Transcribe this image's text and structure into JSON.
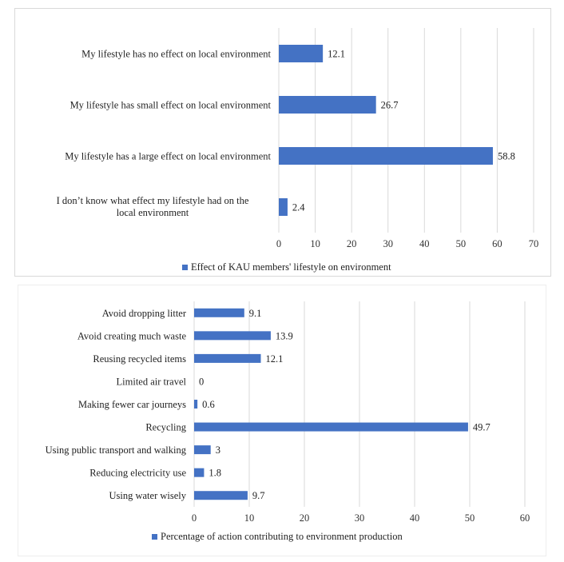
{
  "colors": {
    "bar": "#4472c4",
    "grid": "#d9d9d9",
    "text": "#222222"
  },
  "chart_data": [
    {
      "type": "bar",
      "orientation": "horizontal",
      "categories": [
        "My lifestyle has no effect on local environment",
        "My lifestyle has small effect on local environment",
        "My lifestyle has a large effect on local environment",
        "I don’t know what effect my lifestyle had on the local environment"
      ],
      "series": [
        {
          "name": "Effect of KAU members' lifestyle on environment",
          "values": [
            12.1,
            26.7,
            58.8,
            2.4
          ]
        }
      ],
      "xlim": [
        0,
        70
      ],
      "xticks": [
        0,
        10,
        20,
        30,
        40,
        50,
        60,
        70
      ],
      "grid": true,
      "legend": "bottom"
    },
    {
      "type": "bar",
      "orientation": "horizontal",
      "categories": [
        "Avoid dropping litter",
        "Avoid creating much waste",
        "Reusing recycled items",
        "Limited air travel",
        "Making fewer car journeys",
        "Recycling",
        "Using public transport and walking",
        "Reducing electricity use",
        "Using water wisely"
      ],
      "series": [
        {
          "name": "Percentage of action contributing to environment production",
          "values": [
            9.1,
            13.9,
            12.1,
            0,
            0.6,
            49.7,
            3,
            1.8,
            9.7
          ]
        }
      ],
      "xlim": [
        0,
        60
      ],
      "xticks": [
        0,
        10,
        20,
        30,
        40,
        50,
        60
      ],
      "grid": true,
      "legend": "bottom"
    }
  ]
}
